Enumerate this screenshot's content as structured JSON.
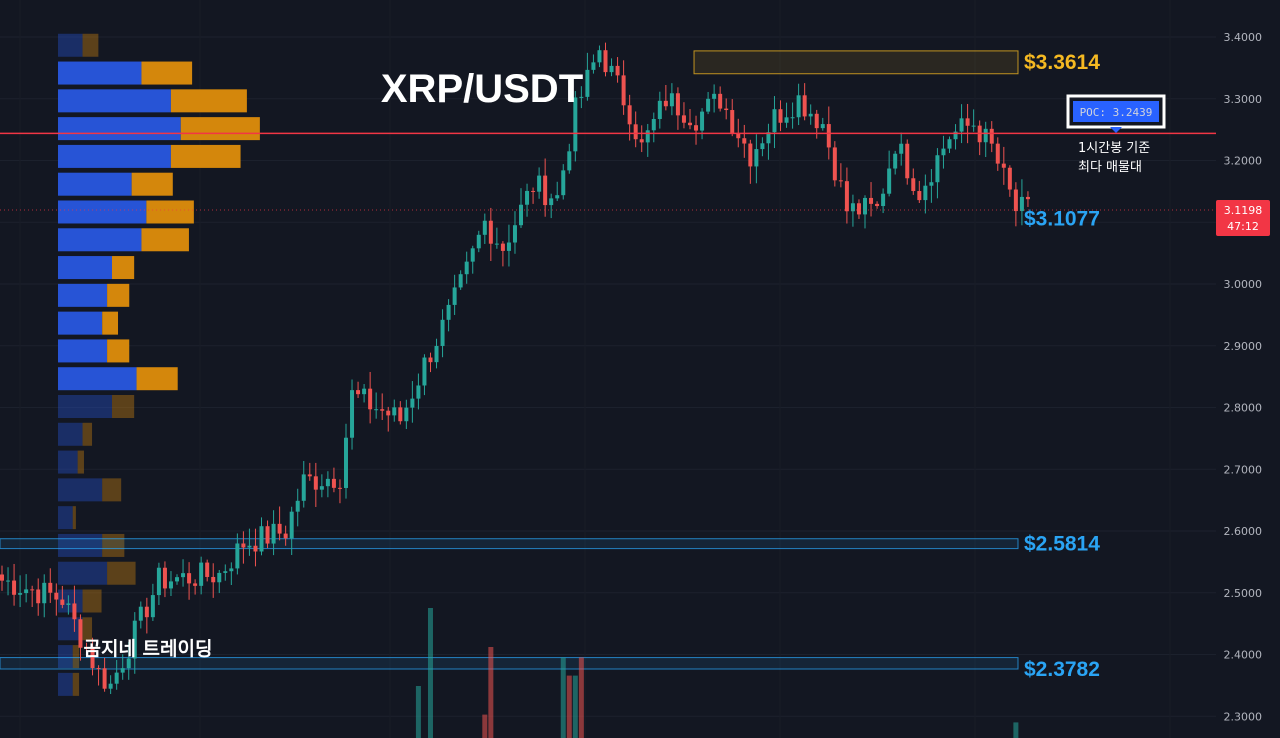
{
  "chart_data": {
    "type": "candlestick",
    "title": "XRP/USDT",
    "watermark": "곰지네 트레이딩",
    "y_axis": {
      "range": [
        2.28,
        3.42
      ],
      "ticks": [
        "3.4000",
        "3.3000",
        "3.2000",
        "3.1000",
        "3.0000",
        "2.9000",
        "2.8000",
        "2.7000",
        "2.6000",
        "2.5000",
        "2.4000",
        "2.3000"
      ],
      "position": "right"
    },
    "current_price": {
      "value": 3.1198,
      "label": "3.1198",
      "countdown": "47:12",
      "color": "#f23645"
    },
    "poc": {
      "value": 3.2439,
      "label": "POC: 3.2439",
      "color": "#f23645",
      "note_line1": "1시간봉 기준",
      "note_line2": "최다 매물대"
    },
    "levels": [
      {
        "label": "$3.3614",
        "value": 3.3614,
        "color": "#f5b922",
        "zone_top": 3.3775,
        "zone_bottom": 3.3405,
        "zone_start_index": 115
      },
      {
        "label": "$3.1077",
        "value": 3.1077,
        "color": "#2aa4f4",
        "zone_top": 3.1225,
        "zone_bottom": 3.0905,
        "zone_start_index": 174
      },
      {
        "label": "$2.5814",
        "value": 2.5814,
        "color": "#2aa4f4",
        "zone_top": 2.5875,
        "zone_bottom": 2.5715,
        "zone_start_index": 0
      },
      {
        "label": "$2.3782",
        "value": 2.3782,
        "color": "#2aa4f4",
        "zone_top": 2.395,
        "zone_bottom": 2.3765,
        "zone_start_index": 0
      }
    ],
    "colors": {
      "up": "#26a69a",
      "down": "#ef5350",
      "background": "#131722",
      "vp_up": "#2754d6",
      "vp_down": "#d4870c"
    },
    "volume_profile": [
      {
        "price": 3.385,
        "up": 0.1,
        "down": 0.1,
        "faded": true
      },
      {
        "price": 3.34,
        "up": 0.34,
        "down": 0.32
      },
      {
        "price": 3.295,
        "up": 0.46,
        "down": 0.48
      },
      {
        "price": 3.25,
        "up": 0.5,
        "down": 0.5
      },
      {
        "price": 3.205,
        "up": 0.46,
        "down": 0.44
      },
      {
        "price": 3.16,
        "up": 0.3,
        "down": 0.26
      },
      {
        "price": 3.115,
        "up": 0.36,
        "down": 0.3
      },
      {
        "price": 3.07,
        "up": 0.34,
        "down": 0.3
      },
      {
        "price": 3.025,
        "up": 0.22,
        "down": 0.14
      },
      {
        "price": 2.98,
        "up": 0.2,
        "down": 0.14
      },
      {
        "price": 2.935,
        "up": 0.18,
        "down": 0.1
      },
      {
        "price": 2.89,
        "up": 0.2,
        "down": 0.14
      },
      {
        "price": 2.845,
        "up": 0.32,
        "down": 0.26
      },
      {
        "price": 2.8,
        "up": 0.22,
        "down": 0.14,
        "faded": true
      },
      {
        "price": 2.755,
        "up": 0.1,
        "down": 0.06,
        "faded": true
      },
      {
        "price": 2.71,
        "up": 0.08,
        "down": 0.04,
        "faded": true
      },
      {
        "price": 2.665,
        "up": 0.18,
        "down": 0.12,
        "faded": true
      },
      {
        "price": 2.62,
        "up": 0.06,
        "down": 0.02,
        "faded": true
      },
      {
        "price": 2.575,
        "up": 0.18,
        "down": 0.14,
        "faded": true
      },
      {
        "price": 2.53,
        "up": 0.2,
        "down": 0.18,
        "faded": true
      },
      {
        "price": 2.485,
        "up": 0.1,
        "down": 0.12,
        "faded": true
      },
      {
        "price": 2.44,
        "up": 0.1,
        "down": 0.06,
        "faded": true
      },
      {
        "price": 2.395,
        "up": 0.06,
        "down": 0.04,
        "faded": true
      },
      {
        "price": 2.35,
        "up": 0.06,
        "down": 0.04,
        "faded": true
      }
    ],
    "volume_bars": [
      {
        "index": 69,
        "value": 0.4,
        "dir": "up"
      },
      {
        "index": 71,
        "value": 1.0,
        "dir": "up"
      },
      {
        "index": 80,
        "value": 0.18,
        "dir": "down"
      },
      {
        "index": 81,
        "value": 0.7,
        "dir": "down"
      },
      {
        "index": 93,
        "value": 0.62,
        "dir": "up"
      },
      {
        "index": 94,
        "value": 0.48,
        "dir": "down"
      },
      {
        "index": 95,
        "value": 0.48,
        "dir": "up"
      },
      {
        "index": 96,
        "value": 0.62,
        "dir": "down"
      },
      {
        "index": 168,
        "value": 0.12,
        "dir": "up"
      }
    ],
    "waypoints": [
      [
        0,
        2.52
      ],
      [
        10,
        2.49
      ],
      [
        16,
        2.37
      ],
      [
        18,
        2.35
      ],
      [
        26,
        2.52
      ],
      [
        36,
        2.53
      ],
      [
        40,
        2.58
      ],
      [
        47,
        2.6
      ],
      [
        50,
        2.68
      ],
      [
        56,
        2.69
      ],
      [
        58,
        2.82
      ],
      [
        66,
        2.78
      ],
      [
        70,
        2.87
      ],
      [
        74,
        2.95
      ],
      [
        77,
        3.02
      ],
      [
        80,
        3.1
      ],
      [
        83,
        3.06
      ],
      [
        88,
        3.16
      ],
      [
        92,
        3.14
      ],
      [
        95,
        3.28
      ],
      [
        99,
        3.38
      ],
      [
        104,
        3.28
      ],
      [
        106,
        3.22
      ],
      [
        110,
        3.3
      ],
      [
        115,
        3.27
      ],
      [
        119,
        3.3
      ],
      [
        124,
        3.21
      ],
      [
        128,
        3.27
      ],
      [
        132,
        3.3
      ],
      [
        136,
        3.26
      ],
      [
        140,
        3.12
      ],
      [
        145,
        3.12
      ],
      [
        148,
        3.23
      ],
      [
        150,
        3.19
      ],
      [
        152,
        3.15
      ],
      [
        157,
        3.24
      ],
      [
        161,
        3.26
      ],
      [
        164,
        3.22
      ],
      [
        168,
        3.12
      ],
      [
        170,
        3.12
      ]
    ]
  }
}
